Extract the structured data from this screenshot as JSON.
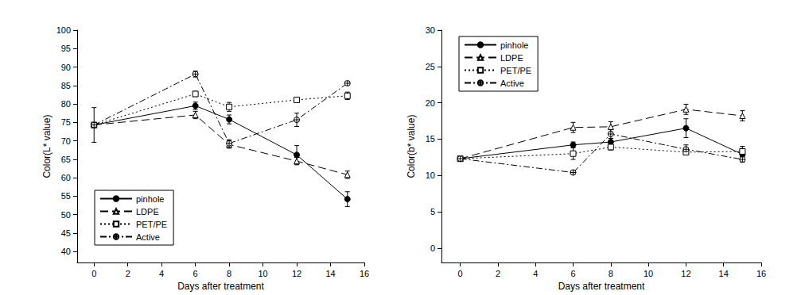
{
  "chart_data": [
    {
      "type": "line",
      "xlabel": "Days after treatment",
      "ylabel": "Color(L* value)",
      "x": [
        0,
        6,
        8,
        12,
        15
      ],
      "xlim": [
        -1,
        16
      ],
      "xticks": [
        0,
        2,
        4,
        6,
        8,
        10,
        12,
        14,
        16
      ],
      "ylim": [
        37,
        100
      ],
      "yticks": [
        40,
        45,
        50,
        55,
        60,
        65,
        70,
        75,
        80,
        85,
        90,
        95,
        100
      ],
      "grid": false,
      "legend": "lower left",
      "series": [
        {
          "name": "pinhole",
          "color": "#000000",
          "marker": "filled_circle",
          "line_style": "solid",
          "values": [
            74.3,
            79.5,
            75.8,
            66.2,
            54.2
          ],
          "errors": [
            4.7,
            1.0,
            1.2,
            2.5,
            2.0
          ]
        },
        {
          "name": "LDPE",
          "color": "#000000",
          "marker": "open_triangle",
          "line_style": "long_dash",
          "values": [
            74.3,
            77.0,
            69.0,
            64.5,
            60.8
          ],
          "errors": [
            null,
            1.0,
            1.0,
            1.0,
            1.0
          ]
        },
        {
          "name": "PET/PE",
          "color": "#000000",
          "marker": "open_square",
          "line_style": "dotted",
          "values": [
            74.3,
            82.7,
            79.2,
            81.1,
            82.2
          ],
          "errors": [
            null,
            0.7,
            1.2,
            0.5,
            1.0
          ]
        },
        {
          "name": "Active",
          "color": "#000000",
          "marker": "crossed_circle",
          "line_style": "dash_dot",
          "values": [
            74.3,
            88.1,
            69.3,
            75.7,
            85.6
          ],
          "errors": [
            null,
            0.8,
            1.0,
            1.8,
            0.5
          ]
        }
      ]
    },
    {
      "type": "line",
      "xlabel": "Days after treatment",
      "ylabel": "Color(b* value)",
      "x": [
        0,
        6,
        8,
        12,
        15
      ],
      "xlim": [
        -1,
        16
      ],
      "xticks": [
        0,
        2,
        4,
        6,
        8,
        10,
        12,
        14,
        16
      ],
      "ylim": [
        -2,
        30
      ],
      "yticks": [
        0,
        5,
        10,
        15,
        20,
        25,
        30
      ],
      "grid": false,
      "legend": "upper left",
      "series": [
        {
          "name": "pinhole",
          "color": "#000000",
          "marker": "filled_circle",
          "line_style": "solid",
          "values": [
            12.3,
            14.2,
            14.6,
            16.5,
            12.9
          ],
          "errors": [
            0.2,
            0.4,
            0.5,
            1.3,
            0.8
          ]
        },
        {
          "name": "LDPE",
          "color": "#000000",
          "marker": "open_triangle",
          "line_style": "long_dash",
          "values": [
            12.3,
            16.6,
            16.7,
            19.1,
            18.2
          ],
          "errors": [
            null,
            0.7,
            0.7,
            0.7,
            0.7
          ]
        },
        {
          "name": "PET/PE",
          "color": "#000000",
          "marker": "open_square",
          "line_style": "dotted",
          "values": [
            12.3,
            13.0,
            13.9,
            13.2,
            13.3
          ],
          "errors": [
            null,
            0.8,
            0.4,
            0.3,
            0.7
          ]
        },
        {
          "name": "Active",
          "color": "#000000",
          "marker": "crossed_circle",
          "line_style": "dash_dot",
          "values": [
            12.3,
            10.4,
            15.7,
            13.6,
            12.2
          ],
          "errors": [
            null,
            0.2,
            0.6,
            0.6,
            0.4
          ]
        }
      ]
    }
  ]
}
